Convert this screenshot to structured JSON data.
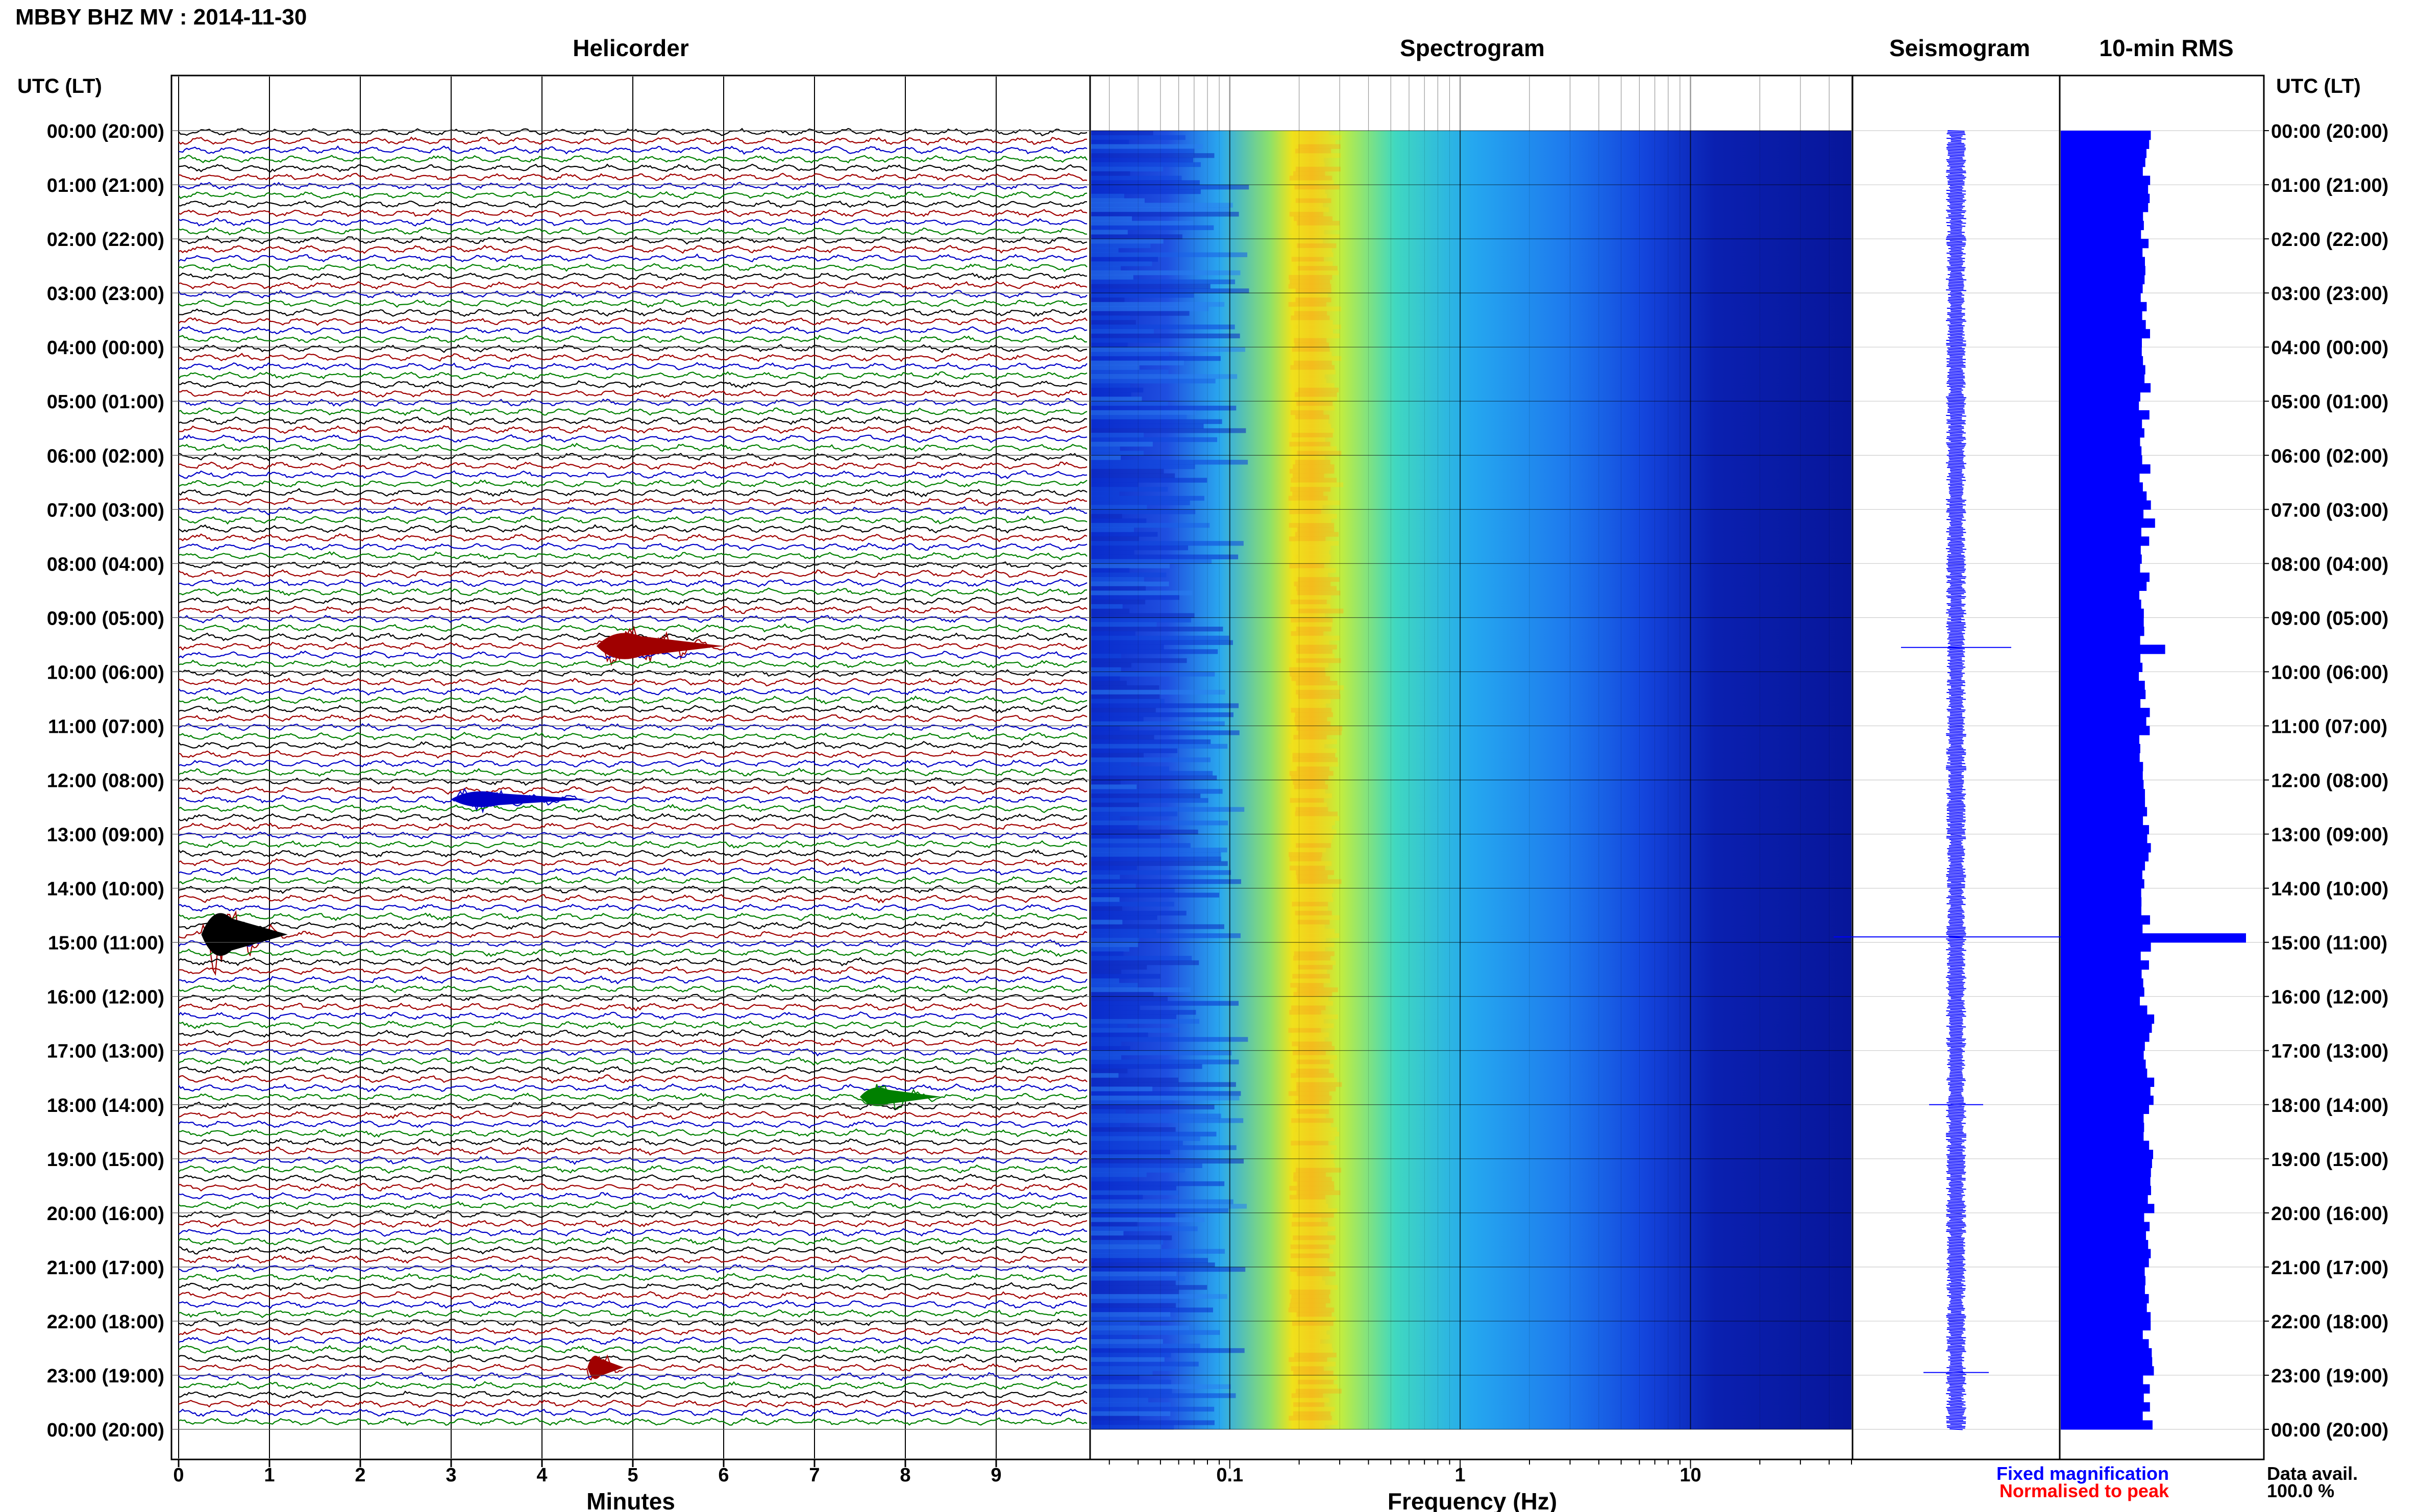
{
  "header": {
    "station": "MBBY BHZ MV : 2014-11-30",
    "utc_label_left": "UTC (LT)",
    "utc_label_right": "UTC (LT)"
  },
  "panels": {
    "helicorder": "Helicorder",
    "spectrogram": "Spectrogram",
    "seismogram": "Seismogram",
    "rms": "10-min RMS"
  },
  "footer": {
    "fixed": "Fixed magnification",
    "normalised": "Normalised to peak",
    "data_avail_label": "Data avail.",
    "data_avail_value": "100.0 %"
  },
  "colors": {
    "trace_cycle": [
      "#000000",
      "#a00000",
      "#0000c8",
      "#008000"
    ],
    "rms_bar": "#0000ff",
    "seismogram": "#0000ff",
    "fixed_text": "#0000ff",
    "normalised_text": "#ff0000"
  },
  "chart_data": [
    {
      "type": "line",
      "name": "helicorder",
      "xlabel": "Minutes",
      "x_ticks": [
        "0",
        "1",
        "2",
        "3",
        "4",
        "5",
        "6",
        "7",
        "8",
        "9"
      ],
      "xlim": [
        0,
        10
      ],
      "rows_per_hour": 6,
      "y_ticks": [
        "00:00 (20:00)",
        "01:00 (21:00)",
        "02:00 (22:00)",
        "03:00 (23:00)",
        "04:00 (00:00)",
        "05:00 (01:00)",
        "06:00 (02:00)",
        "07:00 (03:00)",
        "08:00 (04:00)",
        "09:00 (05:00)",
        "10:00 (06:00)",
        "11:00 (07:00)",
        "12:00 (08:00)",
        "13:00 (09:00)",
        "14:00 (10:00)",
        "15:00 (11:00)",
        "16:00 (12:00)",
        "17:00 (13:00)",
        "18:00 (14:00)",
        "19:00 (15:00)",
        "20:00 (16:00)",
        "21:00 (17:00)",
        "22:00 (18:00)",
        "23:00 (19:00)",
        "00:00 (20:00)"
      ],
      "events": [
        {
          "hour": 14.83,
          "minute_start": 0.25,
          "minute_end": 1.2,
          "amplitude": 2.4,
          "color": "#000000"
        },
        {
          "hour": 9.5,
          "minute_start": 4.6,
          "minute_end": 6.0,
          "amplitude": 1.3,
          "color": "#a00000"
        },
        {
          "hour": 12.33,
          "minute_start": 3.0,
          "minute_end": 4.5,
          "amplitude": 0.6,
          "color": "#0000c8"
        },
        {
          "hour": 17.83,
          "minute_start": 7.5,
          "minute_end": 8.4,
          "amplitude": 0.8,
          "color": "#008000"
        },
        {
          "hour": 22.83,
          "minute_start": 4.5,
          "minute_end": 4.9,
          "amplitude": 1.1,
          "color": "#a00000"
        }
      ]
    },
    {
      "type": "heatmap",
      "name": "spectrogram",
      "xlabel": "Frequency (Hz)",
      "x_scale": "log",
      "xlim": [
        0.025,
        50
      ],
      "x_ticks": [
        "0.1",
        "1",
        "10"
      ],
      "peak_frequency_hz": 0.22
    },
    {
      "type": "line",
      "name": "seismogram",
      "spikes": [
        {
          "hour": 9.55,
          "amplitude": 0.4
        },
        {
          "hour": 14.9,
          "amplitude": 1.0
        },
        {
          "hour": 18.0,
          "amplitude": 0.15
        },
        {
          "hour": 22.95,
          "amplitude": 0.2
        }
      ]
    },
    {
      "type": "bar",
      "name": "10-min RMS",
      "orientation": "horizontal",
      "xlim": [
        0,
        3.0
      ],
      "bins_per_hour": 6,
      "baseline": 1.25,
      "peaks": [
        {
          "hour": 14.83,
          "value": 2.75
        },
        {
          "hour": 9.5,
          "value": 1.55
        },
        {
          "hour": 7.17,
          "value": 1.4
        }
      ]
    }
  ]
}
